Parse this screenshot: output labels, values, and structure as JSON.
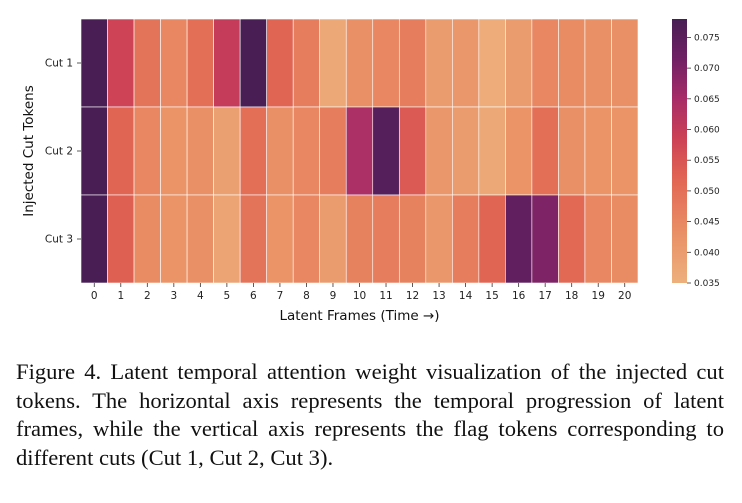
{
  "chart_data": {
    "type": "heatmap",
    "xlabel": "Latent Frames (Time →)",
    "ylabel": "Injected Cut Tokens",
    "x": [
      "0",
      "1",
      "2",
      "3",
      "4",
      "5",
      "6",
      "7",
      "8",
      "9",
      "10",
      "11",
      "12",
      "13",
      "14",
      "15",
      "16",
      "17",
      "18",
      "19",
      "20"
    ],
    "y": [
      "Cut 1",
      "Cut 2",
      "Cut 3"
    ],
    "values": [
      [
        0.078,
        0.058,
        0.049,
        0.045,
        0.05,
        0.06,
        0.079,
        0.052,
        0.047,
        0.037,
        0.043,
        0.045,
        0.047,
        0.04,
        0.041,
        0.036,
        0.04,
        0.045,
        0.044,
        0.043,
        0.043
      ],
      [
        0.078,
        0.052,
        0.045,
        0.042,
        0.043,
        0.039,
        0.05,
        0.043,
        0.045,
        0.047,
        0.064,
        0.076,
        0.054,
        0.041,
        0.04,
        0.037,
        0.042,
        0.05,
        0.043,
        0.042,
        0.042
      ],
      [
        0.078,
        0.053,
        0.044,
        0.042,
        0.043,
        0.038,
        0.049,
        0.042,
        0.045,
        0.04,
        0.046,
        0.047,
        0.046,
        0.041,
        0.047,
        0.052,
        0.074,
        0.07,
        0.051,
        0.045,
        0.044
      ]
    ],
    "colorbar": {
      "min": 0.035,
      "max": 0.078,
      "ticks": [
        "0.035",
        "0.040",
        "0.045",
        "0.050",
        "0.055",
        "0.060",
        "0.065",
        "0.070",
        "0.075"
      ],
      "colormap": "flare"
    }
  },
  "caption": "Figure 4.  Latent temporal attention weight visualization of the injected cut tokens. The horizontal axis represents the temporal progression of latent frames, while the vertical axis represents the flag tokens corresponding to different cuts (Cut 1, Cut 2, Cut 3)."
}
